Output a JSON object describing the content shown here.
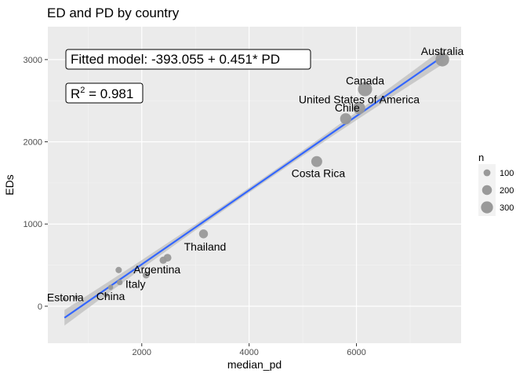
{
  "chart_data": {
    "type": "scatter",
    "title": "ED and PD by country",
    "xlabel": "median_pd",
    "ylabel": "EDs",
    "xlim": [
      250,
      7950
    ],
    "ylim": [
      -450,
      3400
    ],
    "x_ticks": [
      2000,
      4000,
      6000
    ],
    "y_ticks": [
      0,
      1000,
      2000,
      3000
    ],
    "grid": true,
    "background": "#ebebeb",
    "point_color": "#999999",
    "line_color": "#3366ff",
    "ribbon_color": "#bdbdbd",
    "fit": {
      "intercept": -393.055,
      "slope": 0.451,
      "r2": 0.981,
      "x_range": [
        560,
        7620
      ],
      "ci_halfwidth_ends": 95,
      "ci_halfwidth_center": 30
    },
    "annotations": {
      "model_text": "Fitted model: -393.055 + 0.451* PD",
      "r2_text": "R",
      "r2_sup": "2",
      "r2_value": " = 0.981"
    },
    "points": [
      {
        "x": 560,
        "y": 90,
        "n": 20,
        "label": ""
      },
      {
        "x": 780,
        "y": 110,
        "n": 30,
        "label": "Estonia"
      },
      {
        "x": 1330,
        "y": 135,
        "n": 35,
        "label": ""
      },
      {
        "x": 1420,
        "y": 230,
        "n": 40,
        "label": "China"
      },
      {
        "x": 1590,
        "y": 290,
        "n": 50,
        "label": "Italy"
      },
      {
        "x": 1570,
        "y": 440,
        "n": 60,
        "label": ""
      },
      {
        "x": 2080,
        "y": 380,
        "n": 70,
        "label": "Argentina"
      },
      {
        "x": 2400,
        "y": 560,
        "n": 80,
        "label": ""
      },
      {
        "x": 2480,
        "y": 590,
        "n": 90,
        "label": ""
      },
      {
        "x": 3150,
        "y": 880,
        "n": 120,
        "label": "Thailand"
      },
      {
        "x": 5260,
        "y": 1760,
        "n": 180,
        "label": "Costa Rica"
      },
      {
        "x": 5800,
        "y": 2280,
        "n": 190,
        "label": "Chile"
      },
      {
        "x": 6050,
        "y": 2410,
        "n": 220,
        "label": "United States of America"
      },
      {
        "x": 6160,
        "y": 2640,
        "n": 300,
        "label": "Canada"
      },
      {
        "x": 7600,
        "y": 3000,
        "n": 280,
        "label": "Australia"
      }
    ],
    "label_offsets": {
      "Estonia": [
        -14,
        0
      ],
      "China": [
        0,
        11
      ],
      "Italy": [
        20,
        2
      ],
      "Argentina": [
        14,
        -7
      ],
      "Thailand": [
        2,
        16
      ],
      "Costa Rica": [
        2,
        15
      ],
      "Chile": [
        2,
        -14
      ],
      "United States of America": [
        0,
        -11
      ],
      "Canada": [
        0,
        -11
      ],
      "Australia": [
        0,
        -11
      ]
    },
    "legend": {
      "title": "n",
      "placement": "right",
      "entries": [
        {
          "value": 100,
          "label": "100"
        },
        {
          "value": 200,
          "label": "200"
        },
        {
          "value": 300,
          "label": "300"
        }
      ]
    }
  }
}
